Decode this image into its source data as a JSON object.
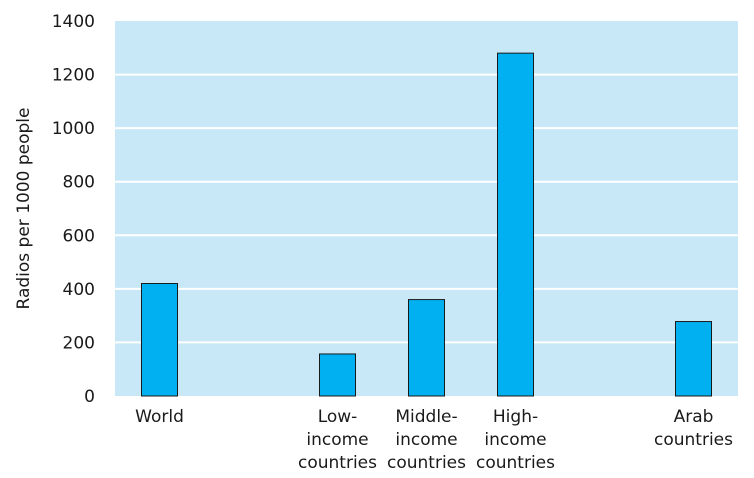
{
  "chart_data": {
    "type": "bar",
    "categories": [
      "World",
      "Low-\nincome\ncountries",
      "Middle-\nincome\ncountries",
      "High-\nincome\ncountries",
      "Arab\ncountries"
    ],
    "category_positions": [
      1,
      3,
      4,
      5,
      7
    ],
    "x_range": [
      0.5,
      7.5
    ],
    "values": [
      420,
      157,
      360,
      1280,
      278
    ],
    "ylabel": "Radios per 1000 people",
    "ylim": [
      0,
      1400
    ],
    "yticks": [
      0,
      200,
      400,
      600,
      800,
      1000,
      1200,
      1400
    ],
    "grid": true,
    "legend": "none"
  },
  "colors": {
    "plot_background": "#c8e8f8",
    "bar_fill": "#00b0f0",
    "bar_stroke": "#1a1a1a",
    "gridline": "#ffffff",
    "text": "#1a1a1a"
  }
}
